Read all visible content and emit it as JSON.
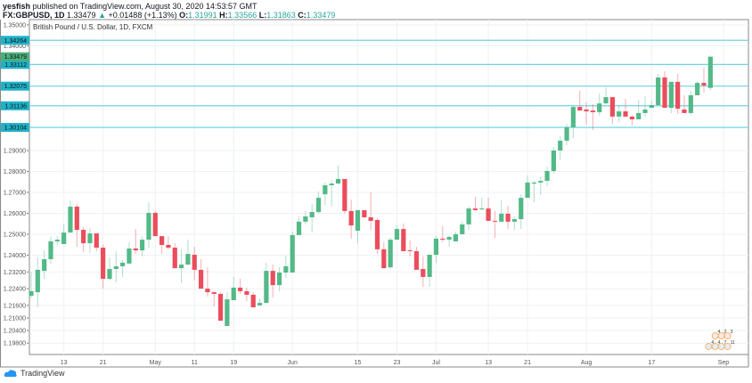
{
  "header": {
    "author": "yesfish",
    "published_text": "published on TradingView.com, August 30, 2020 14:53:57 GMT",
    "symbol": "FX:GBPUSD, 1D",
    "last": "1.33479",
    "arrow": "▲",
    "change": "+0.01488 (+1.13%)",
    "o_label": "O:",
    "o": "1.31991",
    "h_label": "H:",
    "h": "1.33566",
    "l_label": "L:",
    "l": "1.31863",
    "c_label": "C:",
    "c": "1.33479"
  },
  "legend": "British Pound / U.S. Dollar, 1D, FXCM",
  "footer": {
    "brand": "TradingView"
  },
  "colors": {
    "up": "#53b987",
    "down": "#eb4d5c",
    "hline": "#6fd3e3",
    "hlabel": "#1fb3c9",
    "last_label": "#4caf7d",
    "grid": "#eef1f5"
  },
  "chart_data": {
    "type": "candlestick",
    "title": "British Pound / U.S. Dollar, 1D, FXCM",
    "y_ticks": [
      "1.35000",
      "1.34000",
      "1.29000",
      "1.28000",
      "1.27000",
      "1.26000",
      "1.25000",
      "1.24000",
      "1.23200",
      "1.22400",
      "1.21600",
      "1.21000",
      "1.20400",
      "1.19800"
    ],
    "ylim": [
      1.196,
      1.3515
    ],
    "x_ticks": [
      {
        "label": "13",
        "index": 5
      },
      {
        "label": "21",
        "index": 11
      },
      {
        "label": "May",
        "index": 19
      },
      {
        "label": "11",
        "index": 25
      },
      {
        "label": "19",
        "index": 31
      },
      {
        "label": "Jun",
        "index": 40
      },
      {
        "label": "15",
        "index": 50
      },
      {
        "label": "23",
        "index": 56
      },
      {
        "label": "Jul",
        "index": 62
      },
      {
        "label": "13",
        "index": 70
      },
      {
        "label": "21",
        "index": 76
      },
      {
        "label": "Aug",
        "index": 85
      },
      {
        "label": "17",
        "index": 95
      },
      {
        "label": "Sep",
        "index": 106
      }
    ],
    "price_lines": [
      {
        "value": 1.34264,
        "label": "1.34264"
      },
      {
        "value": 1.33112,
        "label": "1.33112"
      },
      {
        "value": 1.32075,
        "label": "1.32075"
      },
      {
        "value": 1.31136,
        "label": "1.31136"
      },
      {
        "value": 1.30104,
        "label": "1.30104"
      }
    ],
    "last_price": {
      "value": 1.33479,
      "label": "1.33479"
    },
    "events": {
      "top": [
        "4",
        "2",
        "3"
      ],
      "bottom": [
        "4",
        "4",
        "7",
        "11"
      ]
    },
    "ohlc": [
      [
        1.2206,
        1.2321,
        1.2194,
        1.2228
      ],
      [
        1.2223,
        1.2389,
        1.2151,
        1.233
      ],
      [
        1.2325,
        1.2423,
        1.2287,
        1.2381
      ],
      [
        1.2381,
        1.2491,
        1.236,
        1.2466
      ],
      [
        1.2466,
        1.2491,
        1.2449,
        1.2474
      ],
      [
        1.2453,
        1.2547,
        1.2453,
        1.2508
      ],
      [
        1.2508,
        1.2662,
        1.2508,
        1.2632
      ],
      [
        1.2632,
        1.2645,
        1.244,
        1.2521
      ],
      [
        1.2521,
        1.2534,
        1.2415,
        1.2457
      ],
      [
        1.2457,
        1.253,
        1.2411,
        1.2504
      ],
      [
        1.2504,
        1.2504,
        1.2419,
        1.2436
      ],
      [
        1.2436,
        1.2449,
        1.224,
        1.2287
      ],
      [
        1.2287,
        1.2389,
        1.2279,
        1.2334
      ],
      [
        1.2334,
        1.2419,
        1.227,
        1.2347
      ],
      [
        1.2347,
        1.2377,
        1.2296,
        1.2364
      ],
      [
        1.236,
        1.2462,
        1.236,
        1.2432
      ],
      [
        1.2432,
        1.2525,
        1.2406,
        1.2423
      ],
      [
        1.2423,
        1.2491,
        1.2394,
        1.2474
      ],
      [
        1.2474,
        1.2653,
        1.2436,
        1.2602
      ],
      [
        1.2602,
        1.2611,
        1.2491,
        1.2491
      ],
      [
        1.2491,
        1.2491,
        1.2406,
        1.2449
      ],
      [
        1.2449,
        1.2491,
        1.2428,
        1.2436
      ],
      [
        1.2436,
        1.2457,
        1.2338,
        1.2338
      ],
      [
        1.2338,
        1.2428,
        1.2266,
        1.2355
      ],
      [
        1.2355,
        1.2474,
        1.2355,
        1.2406
      ],
      [
        1.2402,
        1.244,
        1.2279,
        1.233
      ],
      [
        1.233,
        1.2381,
        1.224,
        1.224
      ],
      [
        1.224,
        1.2342,
        1.2202,
        1.2223
      ],
      [
        1.2223,
        1.2228,
        1.2155,
        1.2215
      ],
      [
        1.2215,
        1.2223,
        1.2087,
        1.2087
      ],
      [
        1.2062,
        1.2223,
        1.2062,
        1.2189
      ],
      [
        1.2185,
        1.2296,
        1.2185,
        1.2245
      ],
      [
        1.2245,
        1.2287,
        1.2215,
        1.2228
      ],
      [
        1.2228,
        1.2245,
        1.2181,
        1.2211
      ],
      [
        1.2211,
        1.2223,
        1.2151,
        1.2151
      ],
      [
        1.216,
        1.2194,
        1.216,
        1.2172
      ],
      [
        1.2172,
        1.2364,
        1.2172,
        1.2325
      ],
      [
        1.2325,
        1.2355,
        1.2198,
        1.2257
      ],
      [
        1.2257,
        1.2342,
        1.2228,
        1.2317
      ],
      [
        1.2317,
        1.2398,
        1.2291,
        1.2347
      ],
      [
        1.2317,
        1.2513,
        1.2317,
        1.2496
      ],
      [
        1.2496,
        1.2585,
        1.2496,
        1.256
      ],
      [
        1.256,
        1.2611,
        1.2547,
        1.2585
      ],
      [
        1.2581,
        1.2645,
        1.2508,
        1.2606
      ],
      [
        1.2606,
        1.2704,
        1.2598,
        1.2674
      ],
      [
        1.2691,
        1.2747,
        1.264,
        1.2734
      ],
      [
        1.2734,
        1.2755,
        1.2632,
        1.2742
      ],
      [
        1.2742,
        1.2828,
        1.2742,
        1.2764
      ],
      [
        1.2764,
        1.2764,
        1.2598,
        1.2611
      ],
      [
        1.2611,
        1.2666,
        1.2479,
        1.2542
      ],
      [
        1.2517,
        1.2615,
        1.2457,
        1.2615
      ],
      [
        1.2615,
        1.2615,
        1.2577,
        1.2581
      ],
      [
        1.2581,
        1.27,
        1.2521,
        1.2564
      ],
      [
        1.2568,
        1.2577,
        1.2406,
        1.2428
      ],
      [
        1.2428,
        1.2462,
        1.2338,
        1.2338
      ],
      [
        1.2342,
        1.2483,
        1.2334,
        1.2474
      ],
      [
        1.2474,
        1.2542,
        1.2474,
        1.2525
      ],
      [
        1.2525,
        1.2551,
        1.2419,
        1.2419
      ],
      [
        1.2423,
        1.247,
        1.2394,
        1.2419
      ],
      [
        1.2419,
        1.244,
        1.233,
        1.233
      ],
      [
        1.2334,
        1.2394,
        1.2249,
        1.2296
      ],
      [
        1.2296,
        1.2402,
        1.2249,
        1.2402
      ],
      [
        1.2402,
        1.2491,
        1.2364,
        1.2479
      ],
      [
        1.2479,
        1.2538,
        1.2462,
        1.2474
      ],
      [
        1.2474,
        1.2496,
        1.244,
        1.2487
      ],
      [
        1.2466,
        1.2513,
        1.2466,
        1.25
      ],
      [
        1.25,
        1.256,
        1.25,
        1.2547
      ],
      [
        1.2547,
        1.2632,
        1.2521,
        1.2623
      ],
      [
        1.2623,
        1.2679,
        1.2615,
        1.2615
      ],
      [
        1.2619,
        1.2674,
        1.2615,
        1.2623
      ],
      [
        1.2623,
        1.2674,
        1.2564,
        1.2564
      ],
      [
        1.2564,
        1.2611,
        1.2483,
        1.256
      ],
      [
        1.256,
        1.2662,
        1.256,
        1.2598
      ],
      [
        1.2598,
        1.2636,
        1.2525,
        1.256
      ],
      [
        1.256,
        1.2585,
        1.2521,
        1.2572
      ],
      [
        1.2572,
        1.2691,
        1.2525,
        1.2674
      ],
      [
        1.2674,
        1.2781,
        1.2674,
        1.2747
      ],
      [
        1.2742,
        1.2755,
        1.2653,
        1.2747
      ],
      [
        1.2747,
        1.2777,
        1.2687,
        1.2755
      ],
      [
        1.2755,
        1.2823,
        1.273,
        1.2802
      ],
      [
        1.2802,
        1.2917,
        1.2789,
        1.29
      ],
      [
        1.29,
        1.2968,
        1.2853,
        1.2947
      ],
      [
        1.2947,
        1.3028,
        1.2925,
        1.3011
      ],
      [
        1.3011,
        1.3117,
        1.2959,
        1.3108
      ],
      [
        1.3108,
        1.3185,
        1.3091,
        1.3091
      ],
      [
        1.3096,
        1.313,
        1.3023,
        1.3087
      ],
      [
        1.3091,
        1.3121,
        1.2998,
        1.3083
      ],
      [
        1.3083,
        1.3172,
        1.3066,
        1.3125
      ],
      [
        1.3125,
        1.3202,
        1.3125,
        1.3155
      ],
      [
        1.3155,
        1.3155,
        1.3028,
        1.3062
      ],
      [
        1.3062,
        1.3117,
        1.3036,
        1.3087
      ],
      [
        1.3087,
        1.3147,
        1.3062,
        1.3062
      ],
      [
        1.3062,
        1.307,
        1.3019,
        1.3049
      ],
      [
        1.3049,
        1.3142,
        1.3049,
        1.3079
      ],
      [
        1.3079,
        1.3159,
        1.3062,
        1.3096
      ],
      [
        1.3104,
        1.3138,
        1.3104,
        1.3117
      ],
      [
        1.3117,
        1.3266,
        1.3117,
        1.3249
      ],
      [
        1.3249,
        1.3279,
        1.3104,
        1.3104
      ],
      [
        1.3104,
        1.3228,
        1.3079,
        1.3228
      ],
      [
        1.3228,
        1.3266,
        1.3074,
        1.31
      ],
      [
        1.3096,
        1.3164,
        1.3079,
        1.3079
      ],
      [
        1.3079,
        1.3185,
        1.307,
        1.3164
      ],
      [
        1.3164,
        1.3232,
        1.3164,
        1.3223
      ],
      [
        1.3223,
        1.3296,
        1.3176,
        1.3211
      ],
      [
        1.31991,
        1.33566,
        1.31863,
        1.33479
      ]
    ]
  }
}
